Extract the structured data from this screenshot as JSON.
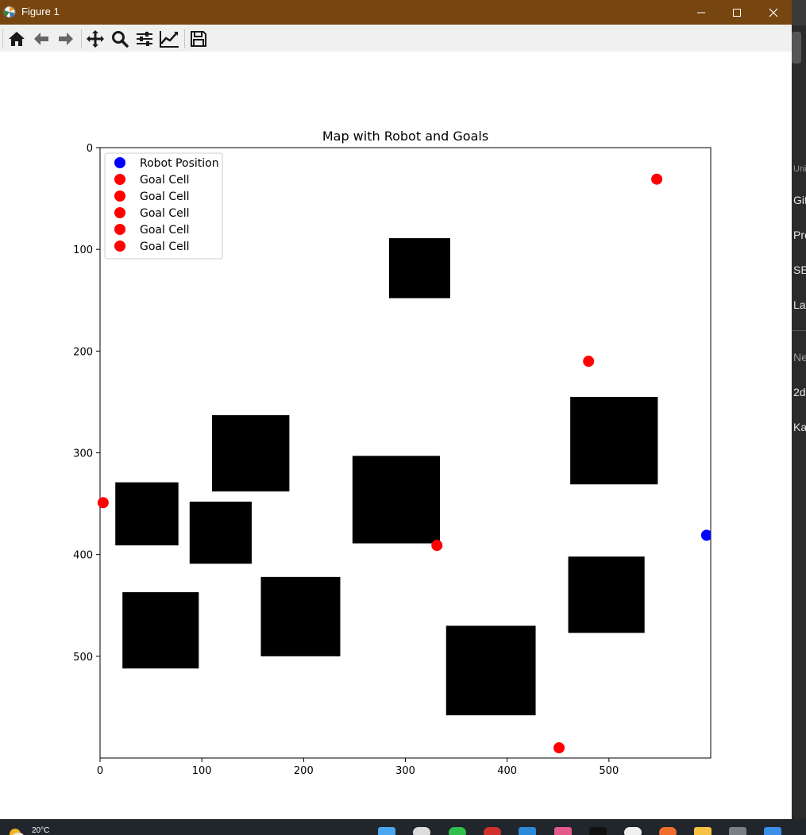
{
  "window": {
    "title": "Figure 1"
  },
  "toolbar": {
    "buttons": [
      {
        "name": "home-button",
        "icon": "home-icon"
      },
      {
        "name": "back-button",
        "icon": "arrow-left-icon"
      },
      {
        "name": "forward-button",
        "icon": "arrow-right-icon"
      },
      {
        "name": "pan-button",
        "icon": "move-icon"
      },
      {
        "name": "zoom-button",
        "icon": "magnifier-icon"
      },
      {
        "name": "configure-subplots-button",
        "icon": "sliders-icon"
      },
      {
        "name": "edit-axis-button",
        "icon": "line-chart-icon"
      },
      {
        "name": "save-button",
        "icon": "floppy-disk-icon"
      }
    ]
  },
  "chart_data": {
    "type": "scatter",
    "title": "Map with Robot and Goals",
    "xlim": [
      0,
      600
    ],
    "ylim": [
      600,
      0
    ],
    "y_inverted": true,
    "xticks": [
      "0",
      "100",
      "200",
      "300",
      "400",
      "500"
    ],
    "yticks": [
      "0",
      "100",
      "200",
      "300",
      "400",
      "500"
    ],
    "xtick_values": [
      0,
      100,
      200,
      300,
      400,
      500
    ],
    "ytick_values": [
      0,
      100,
      200,
      300,
      400,
      500
    ],
    "legend_placement": "upper-left",
    "legend": [
      {
        "label": "Robot Position",
        "color": "#0000ff"
      },
      {
        "label": "Goal Cell",
        "color": "#ff0000"
      },
      {
        "label": "Goal Cell",
        "color": "#ff0000"
      },
      {
        "label": "Goal Cell",
        "color": "#ff0000"
      },
      {
        "label": "Goal Cell",
        "color": "#ff0000"
      },
      {
        "label": "Goal Cell",
        "color": "#ff0000"
      }
    ],
    "series": [
      {
        "name": "Robot Position",
        "color": "#0000ff",
        "points": [
          [
            596,
            381
          ]
        ]
      },
      {
        "name": "Goal Cell",
        "color": "#ff0000",
        "points": [
          [
            547,
            31
          ]
        ]
      },
      {
        "name": "Goal Cell",
        "color": "#ff0000",
        "points": [
          [
            480,
            210
          ]
        ]
      },
      {
        "name": "Goal Cell",
        "color": "#ff0000",
        "points": [
          [
            3,
            349
          ]
        ]
      },
      {
        "name": "Goal Cell",
        "color": "#ff0000",
        "points": [
          [
            331,
            391
          ]
        ]
      },
      {
        "name": "Goal Cell",
        "color": "#ff0000",
        "points": [
          [
            451,
            590
          ]
        ]
      }
    ],
    "obstacles": [
      {
        "x": [
          284,
          344
        ],
        "y": [
          89,
          148
        ]
      },
      {
        "x": [
          462,
          548
        ],
        "y": [
          245,
          331
        ]
      },
      {
        "x": [
          110,
          186
        ],
        "y": [
          263,
          338
        ]
      },
      {
        "x": [
          248,
          334
        ],
        "y": [
          303,
          389
        ]
      },
      {
        "x": [
          15,
          77
        ],
        "y": [
          329,
          391
        ]
      },
      {
        "x": [
          88,
          149
        ],
        "y": [
          348,
          409
        ]
      },
      {
        "x": [
          460,
          535
        ],
        "y": [
          402,
          477
        ]
      },
      {
        "x": [
          158,
          236
        ],
        "y": [
          422,
          500
        ]
      },
      {
        "x": [
          22,
          97
        ],
        "y": [
          437,
          512
        ]
      },
      {
        "x": [
          340,
          428
        ],
        "y": [
          470,
          558
        ]
      }
    ],
    "obstacle_color": "#000000"
  },
  "background_app": {
    "items": [
      "Univ",
      "Git",
      "Pre",
      "SE",
      "Las",
      "Ne",
      "2d",
      "Ka"
    ]
  },
  "taskbar": {
    "weather": "20°C"
  }
}
